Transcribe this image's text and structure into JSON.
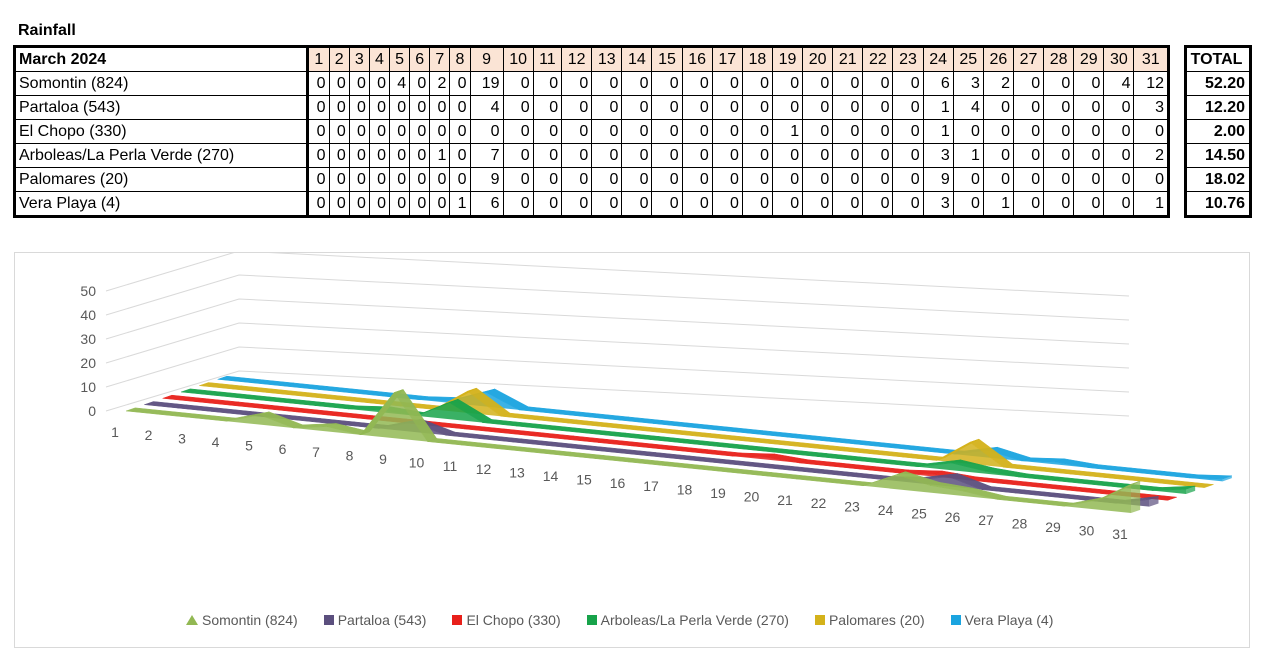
{
  "title": "Rainfall",
  "table": {
    "corner_label": "March 2024",
    "days": [
      "1",
      "2",
      "3",
      "4",
      "5",
      "6",
      "7",
      "8",
      "9",
      "10",
      "11",
      "12",
      "13",
      "14",
      "15",
      "16",
      "17",
      "18",
      "19",
      "20",
      "21",
      "22",
      "23",
      "24",
      "25",
      "26",
      "27",
      "28",
      "29",
      "30",
      "31"
    ],
    "total_label": "TOTAL"
  },
  "chart_data": {
    "type": "area",
    "categories": [
      "1",
      "2",
      "3",
      "4",
      "5",
      "6",
      "7",
      "8",
      "9",
      "10",
      "11",
      "12",
      "13",
      "14",
      "15",
      "16",
      "17",
      "18",
      "19",
      "20",
      "21",
      "22",
      "23",
      "24",
      "25",
      "26",
      "27",
      "28",
      "29",
      "30",
      "31"
    ],
    "z_ticks": [
      "0",
      "10",
      "20",
      "30",
      "40",
      "50"
    ],
    "zlim": [
      0,
      50
    ],
    "legend_position": "bottom",
    "grid": true,
    "series": [
      {
        "name": "Somontin (824)",
        "color": "#92b853",
        "total": "52.20",
        "values": [
          0,
          0,
          0,
          0,
          4,
          0,
          2,
          0,
          19,
          0,
          0,
          0,
          0,
          0,
          0,
          0,
          0,
          0,
          0,
          0,
          0,
          0,
          0,
          6,
          3,
          2,
          0,
          0,
          0,
          4,
          12
        ]
      },
      {
        "name": "Partaloa (543)",
        "color": "#5b4f7e",
        "total": "12.20",
        "values": [
          0,
          0,
          0,
          0,
          0,
          0,
          0,
          0,
          4,
          0,
          0,
          0,
          0,
          0,
          0,
          0,
          0,
          0,
          0,
          0,
          0,
          0,
          0,
          1,
          4,
          0,
          0,
          0,
          0,
          0,
          3
        ]
      },
      {
        "name": "El Chopo (330)",
        "color": "#e8201a",
        "total": "2.00",
        "values": [
          0,
          0,
          0,
          0,
          0,
          0,
          0,
          0,
          0,
          0,
          0,
          0,
          0,
          0,
          0,
          0,
          0,
          0,
          1,
          0,
          0,
          0,
          0,
          1,
          0,
          0,
          0,
          0,
          0,
          0,
          0
        ]
      },
      {
        "name": "Arboleas/La Perla Verde (270)",
        "color": "#17a34a",
        "total": "14.50",
        "values": [
          0,
          0,
          0,
          0,
          0,
          0,
          1,
          0,
          7,
          0,
          0,
          0,
          0,
          0,
          0,
          0,
          0,
          0,
          0,
          0,
          0,
          0,
          0,
          3,
          1,
          0,
          0,
          0,
          0,
          0,
          2
        ]
      },
      {
        "name": "Palomares (20)",
        "color": "#d4b21a",
        "total": "18.02",
        "values": [
          0,
          0,
          0,
          0,
          0,
          0,
          0,
          0,
          9,
          0,
          0,
          0,
          0,
          0,
          0,
          0,
          0,
          0,
          0,
          0,
          0,
          0,
          0,
          9,
          0,
          0,
          0,
          0,
          0,
          0,
          0
        ]
      },
      {
        "name": "Vera Playa (4)",
        "color": "#1aa4e0",
        "total": "10.76",
        "values": [
          0,
          0,
          0,
          0,
          0,
          0,
          0,
          1,
          6,
          0,
          0,
          0,
          0,
          0,
          0,
          0,
          0,
          0,
          0,
          0,
          0,
          0,
          0,
          3,
          0,
          1,
          0,
          0,
          0,
          0,
          1
        ]
      }
    ]
  }
}
